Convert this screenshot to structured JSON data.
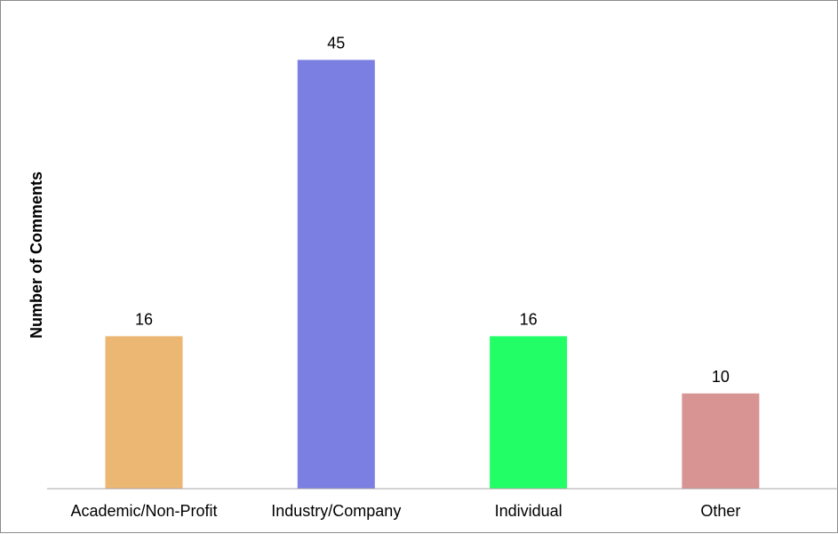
{
  "chart_data": {
    "type": "bar",
    "title": "",
    "xlabel": "",
    "ylabel": "Number of Comments",
    "categories": [
      "Academic/Non-Profit",
      "Industry/Company",
      "Individual",
      "Other"
    ],
    "values": [
      16,
      45,
      16,
      10
    ],
    "colors": [
      "#ecb673",
      "#7b7fe2",
      "#22ff66",
      "#d89393"
    ],
    "ylim": [
      0,
      50
    ],
    "grid": false,
    "legend": "none",
    "data_labels": [
      "16",
      "45",
      "16",
      "10"
    ]
  }
}
